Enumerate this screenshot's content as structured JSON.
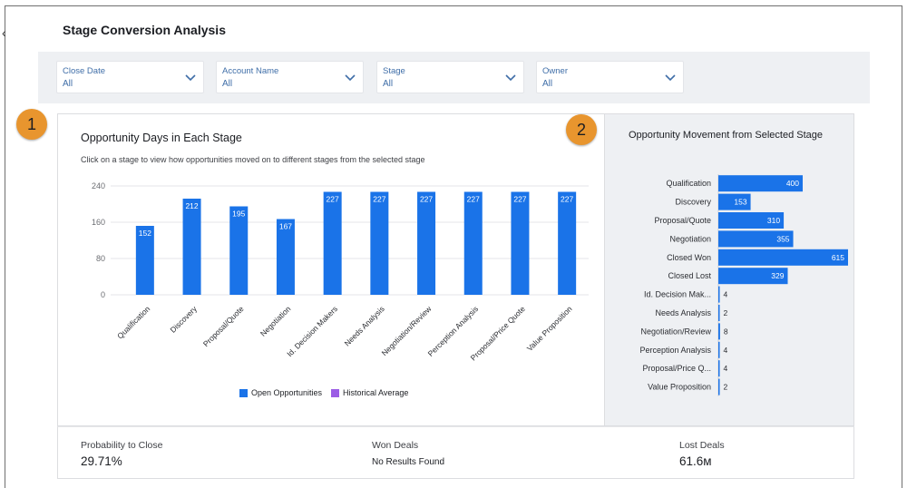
{
  "page": {
    "title": "Stage Conversion Analysis"
  },
  "filters": [
    {
      "label": "Close Date",
      "value": "All"
    },
    {
      "label": "Account Name",
      "value": "All"
    },
    {
      "label": "Stage",
      "value": "All"
    },
    {
      "label": "Owner",
      "value": "All"
    }
  ],
  "badges": {
    "one": "1",
    "two": "2"
  },
  "main_card": {
    "title": "Opportunity Days in Each Stage",
    "subtitle": "Click on a stage to view how opportunities moved on to different stages from the selected stage",
    "legend": [
      {
        "label": "Open Opportunities",
        "color": "#1a73e8"
      },
      {
        "label": "Historical Average",
        "color": "#9b5de5"
      }
    ]
  },
  "side_card": {
    "title": "Opportunity Movement from Selected Stage"
  },
  "stats": {
    "probability": {
      "label": "Probability to Close",
      "value": "29.71%"
    },
    "won": {
      "label": "Won Deals",
      "value": "No Results Found"
    },
    "lost": {
      "label": "Lost Deals",
      "value": "61.6м"
    }
  },
  "chart_data": [
    {
      "type": "bar",
      "orientation": "vertical",
      "categories": [
        "Qualification",
        "Discovery",
        "Proposal/Quote",
        "Negotiation",
        "Id. Decision Makers",
        "Needs Analysis",
        "Negotiation/Review",
        "Perception Analysis",
        "Proposal/Price Quote",
        "Value Proposition"
      ],
      "series": [
        {
          "name": "Open Opportunities",
          "values": [
            152,
            212,
            195,
            167,
            227,
            227,
            227,
            227,
            227,
            227
          ]
        }
      ],
      "yticks": [
        "0",
        "80",
        "160",
        "240"
      ],
      "ylim": [
        0,
        240
      ],
      "grid": true,
      "color": "#1a73e8"
    },
    {
      "type": "bar",
      "orientation": "horizontal",
      "categories": [
        "Qualification",
        "Discovery",
        "Proposal/Quote",
        "Negotiation",
        "Closed Won",
        "Closed Lost",
        "Id. Decision Mak...",
        "Needs Analysis",
        "Negotiation/Review",
        "Perception Analysis",
        "Proposal/Price Q...",
        "Value Proposition"
      ],
      "values": [
        400,
        153,
        310,
        355,
        615,
        329,
        4,
        2,
        8,
        4,
        4,
        2
      ],
      "xlim": [
        0,
        615
      ],
      "color": "#1a73e8"
    }
  ]
}
